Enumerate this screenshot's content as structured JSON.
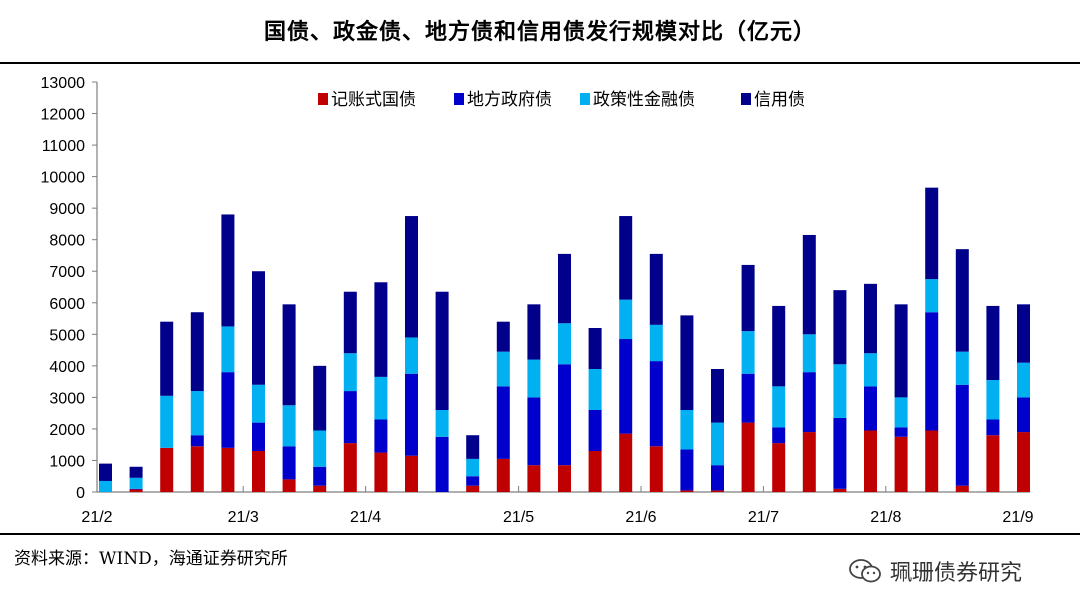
{
  "header": {
    "title": "国债、政金债、地方债和信用债发行规模对比（亿元）"
  },
  "footer": {
    "source": "资料来源：WIND，海通证券研究所"
  },
  "watermark": {
    "icon": "wechat-icon",
    "text": "珮珊债券研究"
  },
  "colors": {
    "ink": "#000000",
    "axis": "#7f7f7f"
  },
  "chart_data": {
    "type": "bar",
    "stacked": true,
    "title": "国债、政金债、地方债和信用债发行规模对比（亿元）",
    "xlabel": "",
    "ylabel": "",
    "ylim": [
      0,
      13000
    ],
    "yticks": [
      0,
      1000,
      2000,
      3000,
      4000,
      5000,
      6000,
      7000,
      8000,
      9000,
      10000,
      11000,
      12000,
      13000
    ],
    "x_tick_labels": [
      {
        "label": "21/2",
        "after_bar": 0
      },
      {
        "label": "21/3",
        "after_bar": 4
      },
      {
        "label": "21/4",
        "after_bar": 8
      },
      {
        "label": "21/5",
        "after_bar": 13
      },
      {
        "label": "21/6",
        "after_bar": 17
      },
      {
        "label": "21/7",
        "after_bar": 21
      },
      {
        "label": "21/8",
        "after_bar": 25
      },
      {
        "label": "21/9",
        "after_bar": 30
      }
    ],
    "legend_position": "top",
    "series": [
      {
        "name": "记账式国债",
        "color": "#c00000",
        "values": [
          0,
          80,
          1400,
          1450,
          1400,
          1300,
          400,
          200,
          1550,
          1250,
          1150,
          0,
          200,
          1050,
          850,
          850,
          1300,
          1850,
          1450,
          50,
          50,
          2200,
          1550,
          1900,
          100,
          1950,
          1750,
          1950,
          200,
          1800,
          1900
        ]
      },
      {
        "name": "地方政府债",
        "color": "#0000cc",
        "values": [
          0,
          20,
          0,
          350,
          2400,
          900,
          1050,
          600,
          1650,
          1050,
          2600,
          1750,
          300,
          2300,
          2150,
          3200,
          1300,
          3000,
          2700,
          1300,
          800,
          1550,
          500,
          1900,
          2250,
          1400,
          300,
          3750,
          3200,
          500,
          1100
        ]
      },
      {
        "name": "政策性金融债",
        "color": "#00b0f0",
        "values": [
          350,
          350,
          1650,
          1400,
          1450,
          1200,
          1300,
          1150,
          1200,
          1350,
          1150,
          850,
          550,
          1100,
          1200,
          1300,
          1300,
          1250,
          1150,
          1250,
          1350,
          1350,
          1300,
          1200,
          1700,
          1050,
          950,
          1050,
          1050,
          1250,
          1100
        ]
      },
      {
        "name": "信用债",
        "color": "#00008b",
        "values": [
          550,
          350,
          2350,
          2500,
          3550,
          3600,
          3200,
          2050,
          1950,
          3000,
          3850,
          3750,
          750,
          950,
          1750,
          2200,
          1300,
          2650,
          2250,
          3000,
          1700,
          2100,
          2550,
          3150,
          2350,
          2200,
          2950,
          2900,
          3250,
          2350,
          1850
        ]
      }
    ]
  }
}
